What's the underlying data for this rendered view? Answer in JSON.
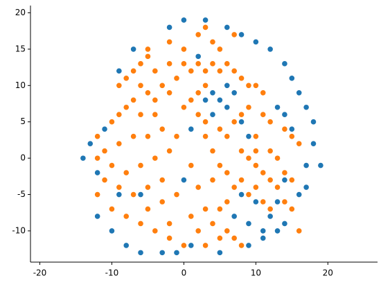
{
  "chart_data": {
    "type": "scatter",
    "xlim": [
      -21.3,
      26.9
    ],
    "ylim": [
      -14.3,
      21
    ],
    "xticks": [
      -20,
      -10,
      0,
      10,
      20
    ],
    "yticks": [
      -10,
      -5,
      0,
      5,
      10,
      15,
      20
    ],
    "grid": false,
    "series": [
      {
        "color": "#1f77b4",
        "x": [
          -14,
          -13,
          -12,
          -11,
          -12,
          -10,
          -8,
          -6,
          -3,
          -1,
          1,
          5,
          9,
          11,
          13,
          14,
          12,
          16,
          17,
          18,
          19,
          18,
          17,
          16,
          15,
          14,
          12,
          10,
          8,
          6,
          3,
          0,
          -2,
          -7,
          -9,
          4,
          5,
          6,
          4,
          7,
          6,
          3,
          8,
          9,
          14,
          15,
          13,
          10,
          8,
          7,
          9,
          11,
          13,
          14,
          1,
          0,
          -9,
          -6,
          2,
          17
        ],
        "y": [
          0,
          2,
          -2,
          4,
          -8,
          -10,
          -12,
          -13,
          -13,
          -13,
          -12,
          -13,
          -12,
          -11,
          -10,
          -9,
          -8,
          -5,
          -1,
          2,
          -1,
          5,
          7,
          9,
          11,
          13,
          15,
          16,
          17,
          18,
          19,
          19,
          18,
          15,
          12,
          9,
          8,
          7,
          6,
          9,
          10,
          8,
          5,
          3,
          6,
          4,
          7,
          -6,
          -5,
          -8,
          -9,
          -10,
          -6,
          -3,
          4,
          -3,
          -5,
          -5,
          14,
          -4
        ]
      },
      {
        "color": "#ff7f0e",
        "x": [
          -9,
          -8,
          -7,
          -6,
          -5,
          -4,
          -6,
          -5,
          -4,
          -7,
          -8,
          -9,
          -10,
          -6,
          -4,
          -3,
          -2,
          -1,
          -2,
          0,
          1,
          2,
          3,
          4,
          5,
          6,
          7,
          8,
          9,
          10,
          11,
          3,
          2,
          1,
          0,
          2,
          3,
          -3,
          -5,
          -7,
          -9,
          -11,
          -12,
          -10,
          -8,
          -6,
          -4,
          -2,
          -3,
          -5,
          -7,
          -9,
          -11,
          -10,
          -8,
          -6,
          -4,
          -2,
          -3,
          -5,
          -1,
          -2,
          0,
          1,
          2,
          3,
          4,
          5,
          6,
          7,
          3,
          2,
          4,
          5,
          6,
          4,
          3,
          5,
          6,
          7,
          8,
          9,
          11,
          12,
          14,
          15,
          8,
          9,
          10,
          11,
          12,
          13,
          14,
          10,
          9,
          11,
          12,
          8,
          13,
          12,
          15,
          14,
          16,
          10,
          2,
          3,
          4,
          5,
          7,
          -5,
          -2,
          0,
          10,
          7,
          6,
          5,
          -12,
          -12,
          -1,
          1,
          8,
          16,
          15
        ],
        "y": [
          10,
          11,
          12,
          13,
          14,
          12,
          10,
          9,
          8,
          8,
          7,
          6,
          5,
          6,
          6,
          10,
          9,
          11,
          13,
          13,
          12,
          13,
          12,
          13,
          12,
          13,
          12,
          11,
          10,
          10,
          9,
          10,
          9,
          8,
          7,
          6,
          5,
          4,
          3,
          3,
          2,
          1,
          0,
          -1,
          -2,
          -1,
          0,
          1,
          -3,
          -4,
          -5,
          -4,
          -3,
          -7,
          -8,
          -9,
          -10,
          -9,
          -6,
          -7,
          -5,
          -11,
          -12,
          -8,
          -10,
          -7,
          -9,
          -11,
          -10,
          -11,
          -12,
          -4,
          -3,
          -1,
          -2,
          1,
          3,
          4,
          3,
          5,
          6,
          7,
          6,
          5,
          4,
          3,
          1,
          0,
          -1,
          -2,
          -3,
          -4,
          -2,
          -4,
          -5,
          -6,
          -7,
          -3,
          0,
          1,
          -3,
          -6,
          -10,
          1,
          17,
          18,
          16,
          15,
          17,
          15,
          16,
          15,
          3,
          -4,
          -6,
          -7,
          -5,
          3,
          3,
          -1,
          -12,
          2,
          -7
        ]
      }
    ]
  }
}
